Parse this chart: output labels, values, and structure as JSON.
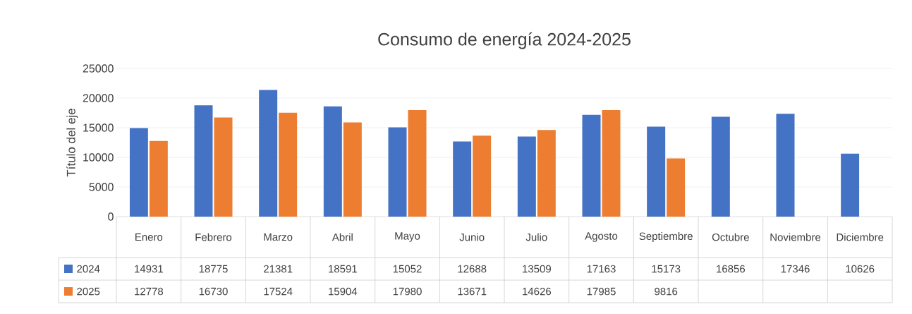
{
  "chart_data": {
    "type": "bar",
    "title": "Consumo de energía 2024-2025",
    "ylabel": "Título del eje",
    "categories": [
      "Enero",
      "Febrero",
      "Marzo",
      "Abril",
      "Mayo",
      "Junio",
      "Julio",
      "Agosto",
      "Septiembre",
      "Octubre",
      "Noviembre",
      "Diciembre"
    ],
    "series": [
      {
        "name": "2024",
        "color": "#4472c4",
        "values": [
          14931,
          18775,
          21381,
          18591,
          15052,
          12688,
          13509,
          17163,
          15173,
          16856,
          17346,
          10626
        ]
      },
      {
        "name": "2025",
        "color": "#ed7d31",
        "values": [
          12778,
          16730,
          17524,
          15904,
          17980,
          13671,
          14626,
          17985,
          9816,
          null,
          null,
          null
        ]
      }
    ],
    "ylim": [
      0,
      25000
    ],
    "yticks": [
      0,
      5000,
      10000,
      15000,
      20000,
      25000
    ],
    "grid": "y",
    "legend": "bottom",
    "data_labels": true
  }
}
